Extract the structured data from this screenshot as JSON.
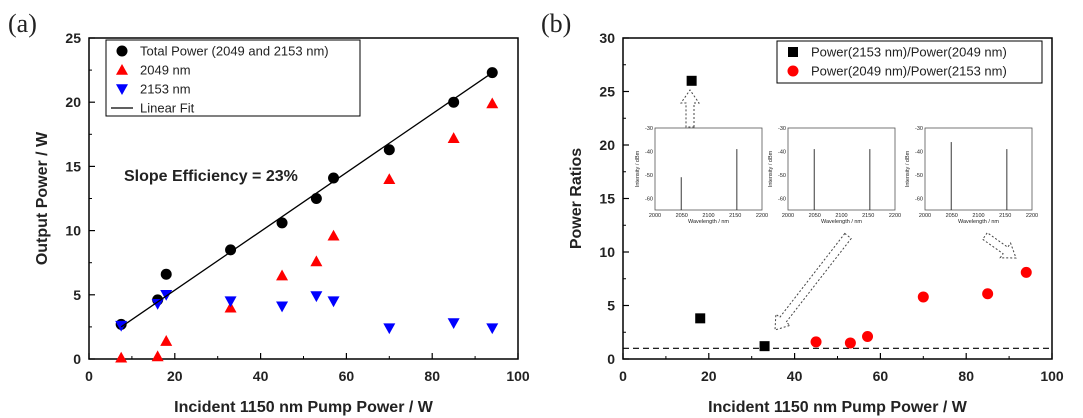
{
  "chart_data": [
    {
      "panel": "(a)",
      "type": "scatter",
      "xlabel": "Incident 1150 nm Pump Power / W",
      "ylabel": "Output Power / W",
      "xlim": [
        0,
        100
      ],
      "ylim": [
        0,
        25
      ],
      "xticks": [
        "0",
        "20",
        "40",
        "60",
        "80",
        "100"
      ],
      "yticks": [
        "0",
        "5",
        "10",
        "15",
        "20",
        "25"
      ],
      "grid": false,
      "legend_position": "top-left",
      "annotation": "Slope Efficiency = 23%",
      "series": [
        {
          "name": "Total Power (2049 and 2153 nm)",
          "marker": "circle",
          "color": "#000000",
          "points": [
            [
              7.5,
              2.7
            ],
            [
              16,
              4.6
            ],
            [
              18,
              6.6
            ],
            [
              33,
              8.5
            ],
            [
              45,
              10.6
            ],
            [
              53,
              12.5
            ],
            [
              57,
              14.1
            ],
            [
              70,
              16.3
            ],
            [
              85,
              20.0
            ],
            [
              94,
              22.3
            ]
          ]
        },
        {
          "name": "2049 nm",
          "marker": "triangle-up",
          "color": "#ff0000",
          "points": [
            [
              7.5,
              0.1
            ],
            [
              16,
              0.2
            ],
            [
              18,
              1.4
            ],
            [
              33,
              4.0
            ],
            [
              45,
              6.5
            ],
            [
              53,
              7.6
            ],
            [
              57,
              9.6
            ],
            [
              70,
              14.0
            ],
            [
              85,
              17.2
            ],
            [
              94,
              19.9
            ]
          ]
        },
        {
          "name": "2153 nm",
          "marker": "triangle-down",
          "color": "#0000ff",
          "points": [
            [
              7.5,
              2.6
            ],
            [
              16,
              4.3
            ],
            [
              18,
              5.0
            ],
            [
              33,
              4.5
            ],
            [
              45,
              4.1
            ],
            [
              53,
              4.9
            ],
            [
              57,
              4.5
            ],
            [
              70,
              2.4
            ],
            [
              85,
              2.8
            ],
            [
              94,
              2.4
            ]
          ]
        },
        {
          "name": "Linear Fit",
          "type": "line",
          "color": "#000000",
          "points": [
            [
              7.5,
              2.5
            ],
            [
              94,
              22.3
            ]
          ]
        }
      ]
    },
    {
      "panel": "(b)",
      "type": "scatter",
      "xlabel": "Incident 1150 nm Pump Power / W",
      "ylabel": "Power Ratios",
      "xlim": [
        0,
        100
      ],
      "ylim": [
        0,
        30
      ],
      "xticks": [
        "0",
        "20",
        "40",
        "60",
        "80",
        "100"
      ],
      "yticks": [
        "0",
        "5",
        "10",
        "15",
        "20",
        "25",
        "30"
      ],
      "grid": false,
      "legend_position": "top-right",
      "reference_line": {
        "y": 1,
        "style": "dashed"
      },
      "series": [
        {
          "name": "Power(2153 nm)/Power(2049 nm)",
          "marker": "square",
          "color": "#000000",
          "points": [
            [
              16,
              26.0
            ],
            [
              18,
              3.8
            ],
            [
              33,
              1.2
            ]
          ]
        },
        {
          "name": "Power(2049 nm)/Power(2153 nm)",
          "marker": "circle",
          "color": "#ff0000",
          "points": [
            [
              45,
              1.6
            ],
            [
              53,
              1.5
            ],
            [
              57,
              2.1
            ],
            [
              70,
              5.8
            ],
            [
              85,
              6.1
            ],
            [
              94,
              8.1
            ]
          ]
        }
      ],
      "insets": [
        {
          "xlabel": "Wavelength / nm",
          "ylabel": "Intensity / dBm",
          "xticks": [
            "2000",
            "2050",
            "2100",
            "2150",
            "2200"
          ],
          "yticks": [
            "-30",
            "-40",
            "-50",
            "-60"
          ],
          "xlim": [
            2000,
            2200
          ],
          "ylim": [
            -65,
            -30
          ],
          "peaks": [
            [
              2049,
              -51
            ],
            [
              2153,
              -39
            ]
          ]
        },
        {
          "xlabel": "Wavelength / nm",
          "ylabel": "Intensity / dBm",
          "xticks": [
            "2000",
            "2050",
            "2100",
            "2150",
            "2200"
          ],
          "yticks": [
            "-30",
            "-40",
            "-50",
            "-60"
          ],
          "xlim": [
            2000,
            2200
          ],
          "ylim": [
            -65,
            -30
          ],
          "peaks": [
            [
              2049,
              -39
            ],
            [
              2153,
              -39
            ]
          ]
        },
        {
          "xlabel": "Wavelength / nm",
          "ylabel": "Intensity / dBm",
          "xticks": [
            "2000",
            "2050",
            "2100",
            "2150",
            "2200"
          ],
          "yticks": [
            "-30",
            "-40",
            "-50",
            "-60"
          ],
          "xlim": [
            2000,
            2200
          ],
          "ylim": [
            -65,
            -30
          ],
          "peaks": [
            [
              2049,
              -36
            ],
            [
              2153,
              -39
            ]
          ]
        }
      ]
    }
  ]
}
